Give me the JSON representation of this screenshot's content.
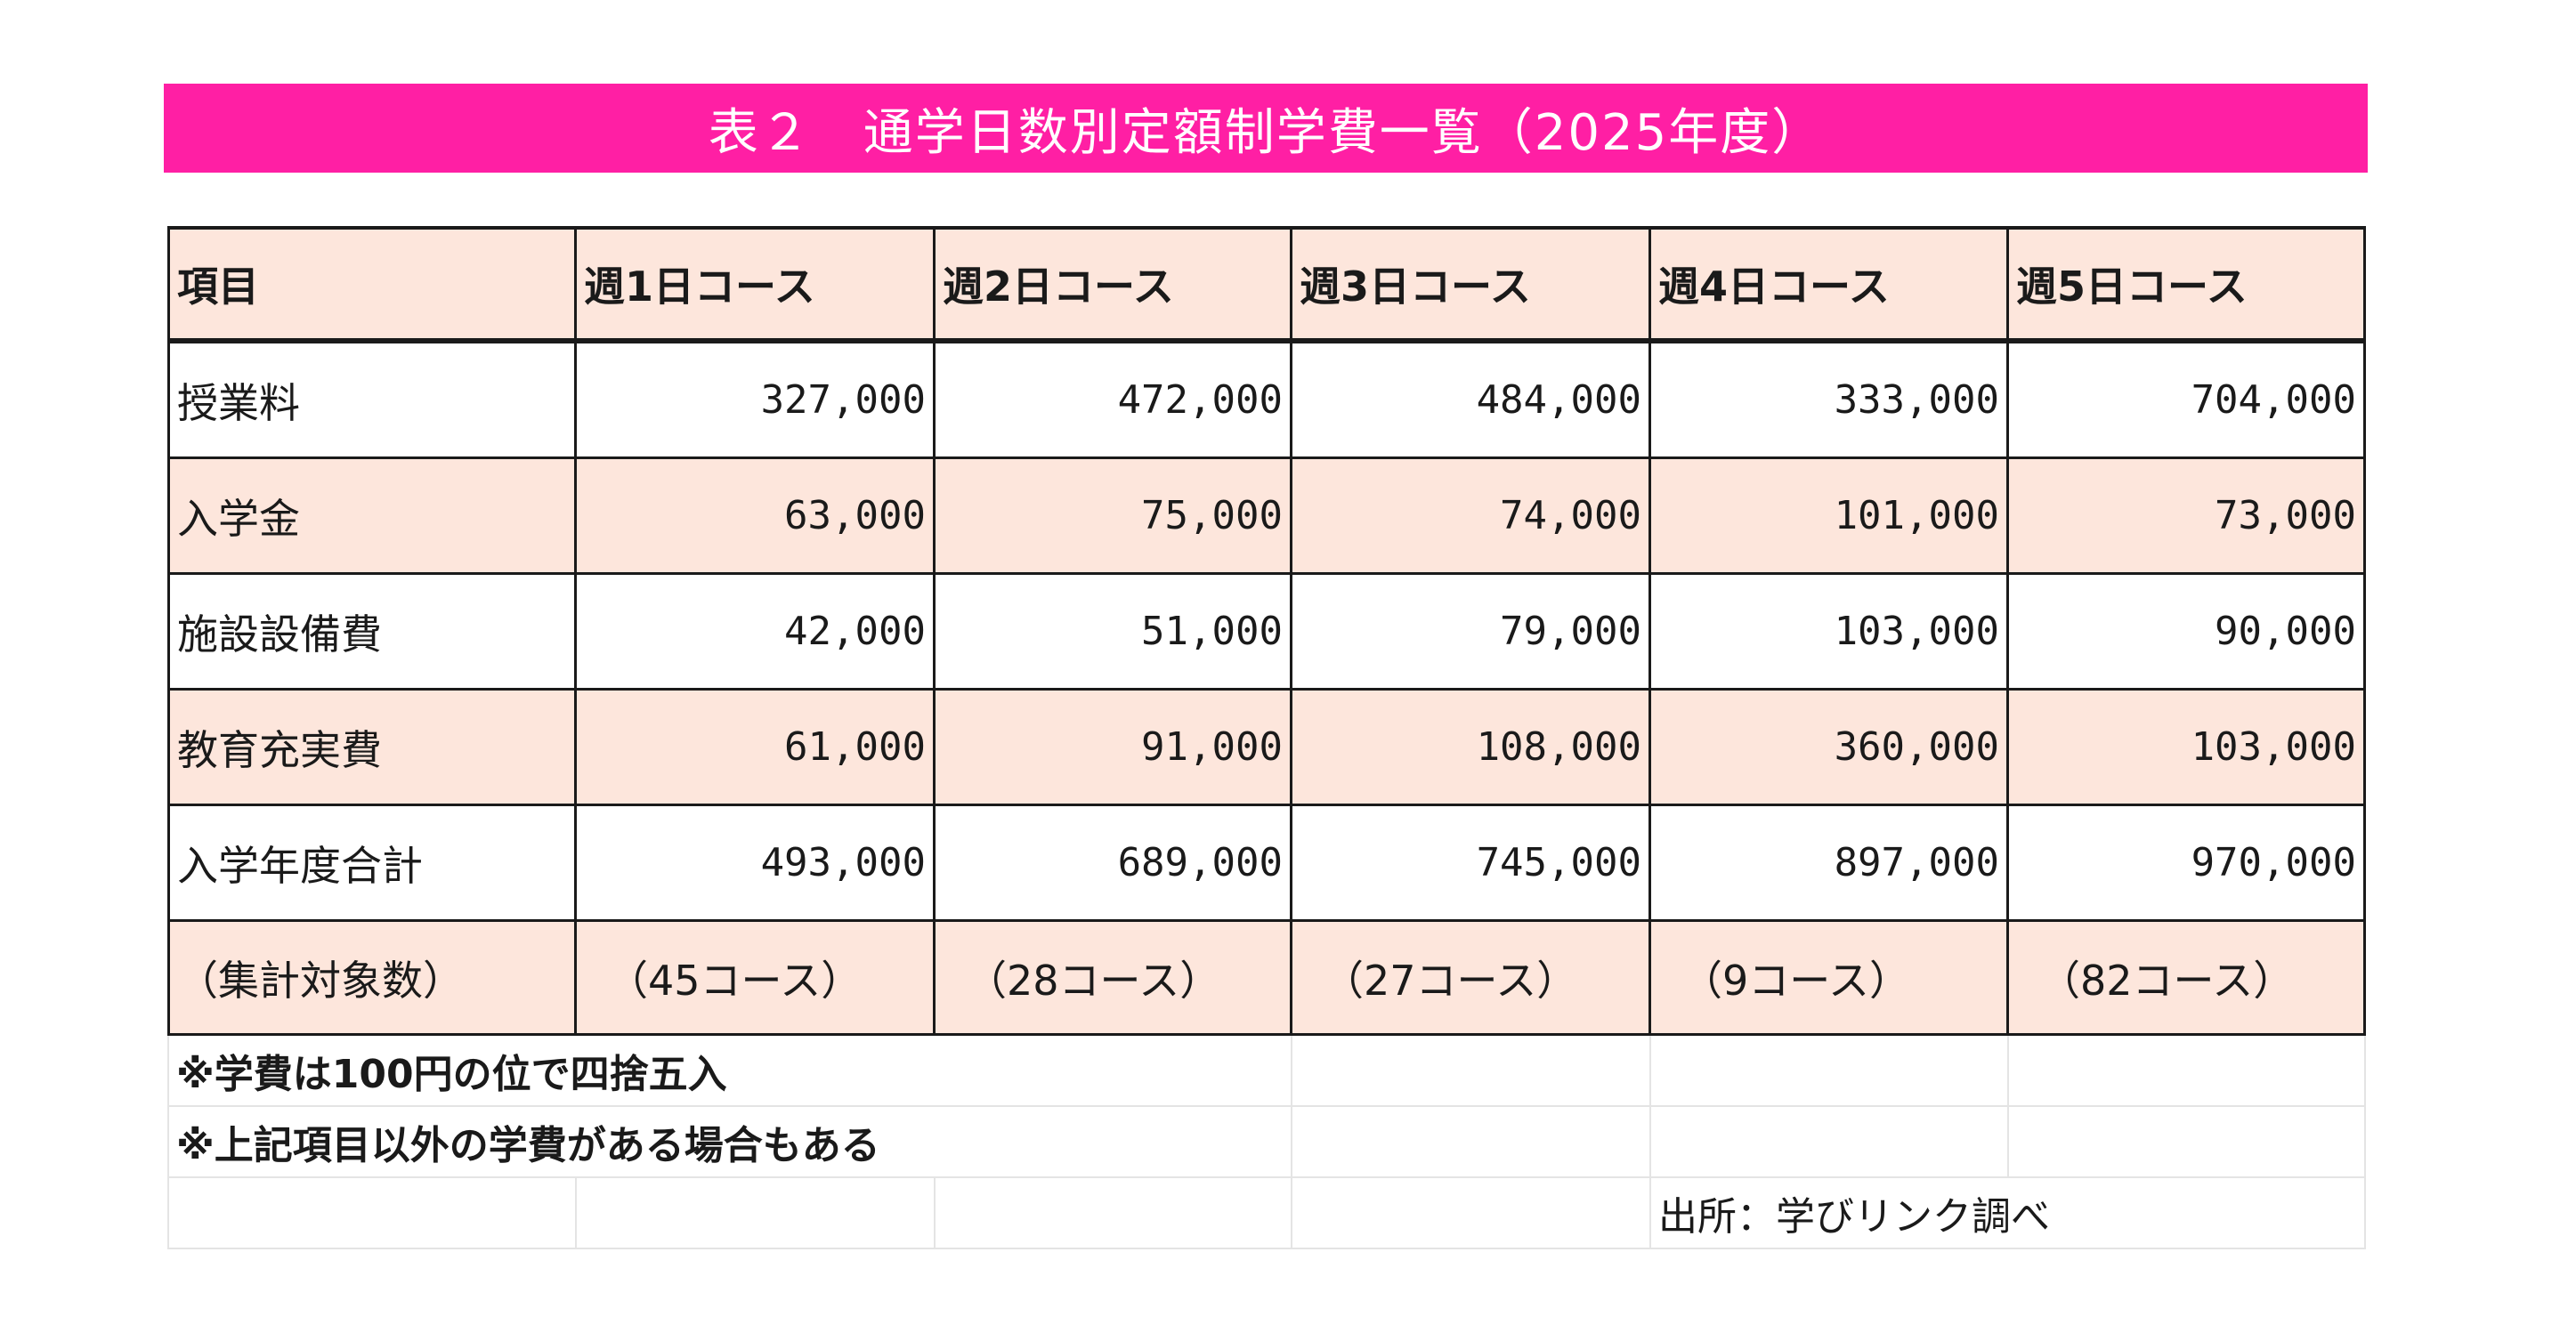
{
  "title": "表２　通学日数別定額制学費一覧（2025年度）",
  "table": {
    "headers": [
      "項目",
      "週1日コース",
      "週2日コース",
      "週3日コース",
      "週4日コース",
      "週5日コース"
    ],
    "rows": [
      {
        "label": "授業料",
        "values": [
          "327,000",
          "472,000",
          "484,000",
          "333,000",
          "704,000"
        ]
      },
      {
        "label": "入学金",
        "values": [
          "63,000",
          "75,000",
          "74,000",
          "101,000",
          "73,000"
        ]
      },
      {
        "label": "施設設備費",
        "values": [
          "42,000",
          "51,000",
          "79,000",
          "103,000",
          "90,000"
        ]
      },
      {
        "label": "教育充実費",
        "values": [
          "61,000",
          "91,000",
          "108,000",
          "360,000",
          "103,000"
        ]
      },
      {
        "label": "入学年度合計",
        "values": [
          "493,000",
          "689,000",
          "745,000",
          "897,000",
          "970,000"
        ]
      }
    ],
    "count_row": {
      "label": "（集計対象数）",
      "values": [
        "（45コース）",
        "（28コース）",
        "（27コース）",
        "（9コース）",
        "（82コース）"
      ]
    }
  },
  "notes": {
    "rounding": "※学費は100円の位で四捨五入",
    "other_fees": "※上記項目以外の学費がある場合もある",
    "source": "出所：学びリンク調べ"
  },
  "colors": {
    "title_bg": "#ff1fa4",
    "shaded_row": "#fde6dc"
  }
}
